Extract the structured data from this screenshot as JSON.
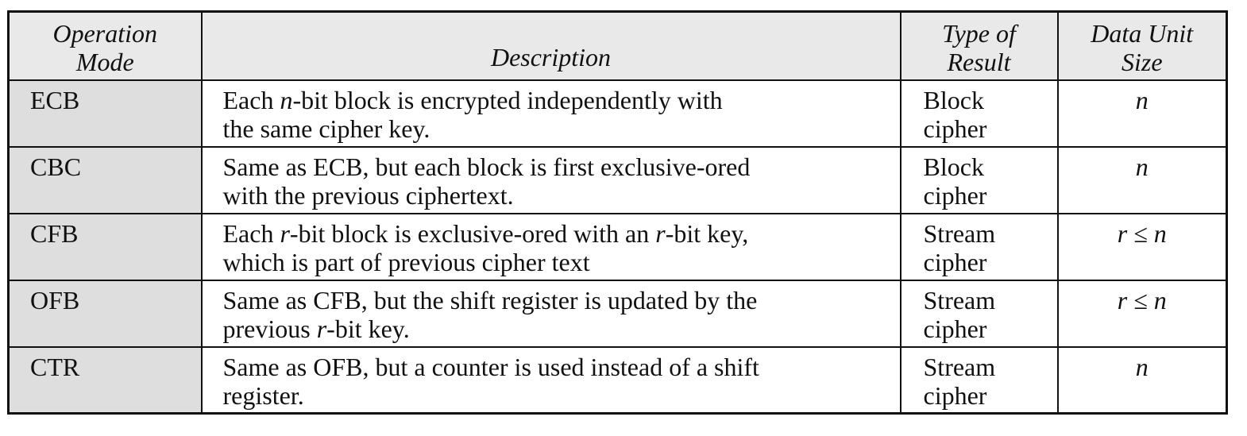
{
  "header": {
    "mode": [
      "Operation",
      "Mode"
    ],
    "description": "Description",
    "type": [
      "Type of",
      "Result"
    ],
    "size": [
      "Data Unit",
      "Size"
    ]
  },
  "rows": [
    {
      "mode": "ECB",
      "desc_line1": [
        "Each ",
        "n",
        "-bit block is encrypted independently with"
      ],
      "desc_line2": "the same cipher key.",
      "type": [
        "Block",
        "cipher"
      ],
      "size": "n"
    },
    {
      "mode": "CBC",
      "desc_line1": "Same as ECB, but each block is first exclusive-ored",
      "desc_line2": "with the previous ciphertext.",
      "type": [
        "Block",
        "cipher"
      ],
      "size": "n"
    },
    {
      "mode": "CFB",
      "desc_line1": [
        "Each ",
        "r",
        "-bit block is exclusive-ored with an ",
        "r",
        "-bit key,"
      ],
      "desc_line2": "which is part of previous cipher text",
      "type": [
        "Stream",
        "cipher"
      ],
      "size": "r ≤ n"
    },
    {
      "mode": "OFB",
      "desc_line1": "Same as CFB, but the shift register is updated by the",
      "desc_line2": [
        "previous ",
        "r",
        "-bit key."
      ],
      "type": [
        "Stream",
        "cipher"
      ],
      "size": "r ≤ n"
    },
    {
      "mode": "CTR",
      "desc_line1": "Same as OFB, but a counter is used instead of a shift",
      "desc_line2": "register.",
      "type": [
        "Stream",
        "cipher"
      ],
      "size": "n"
    }
  ]
}
